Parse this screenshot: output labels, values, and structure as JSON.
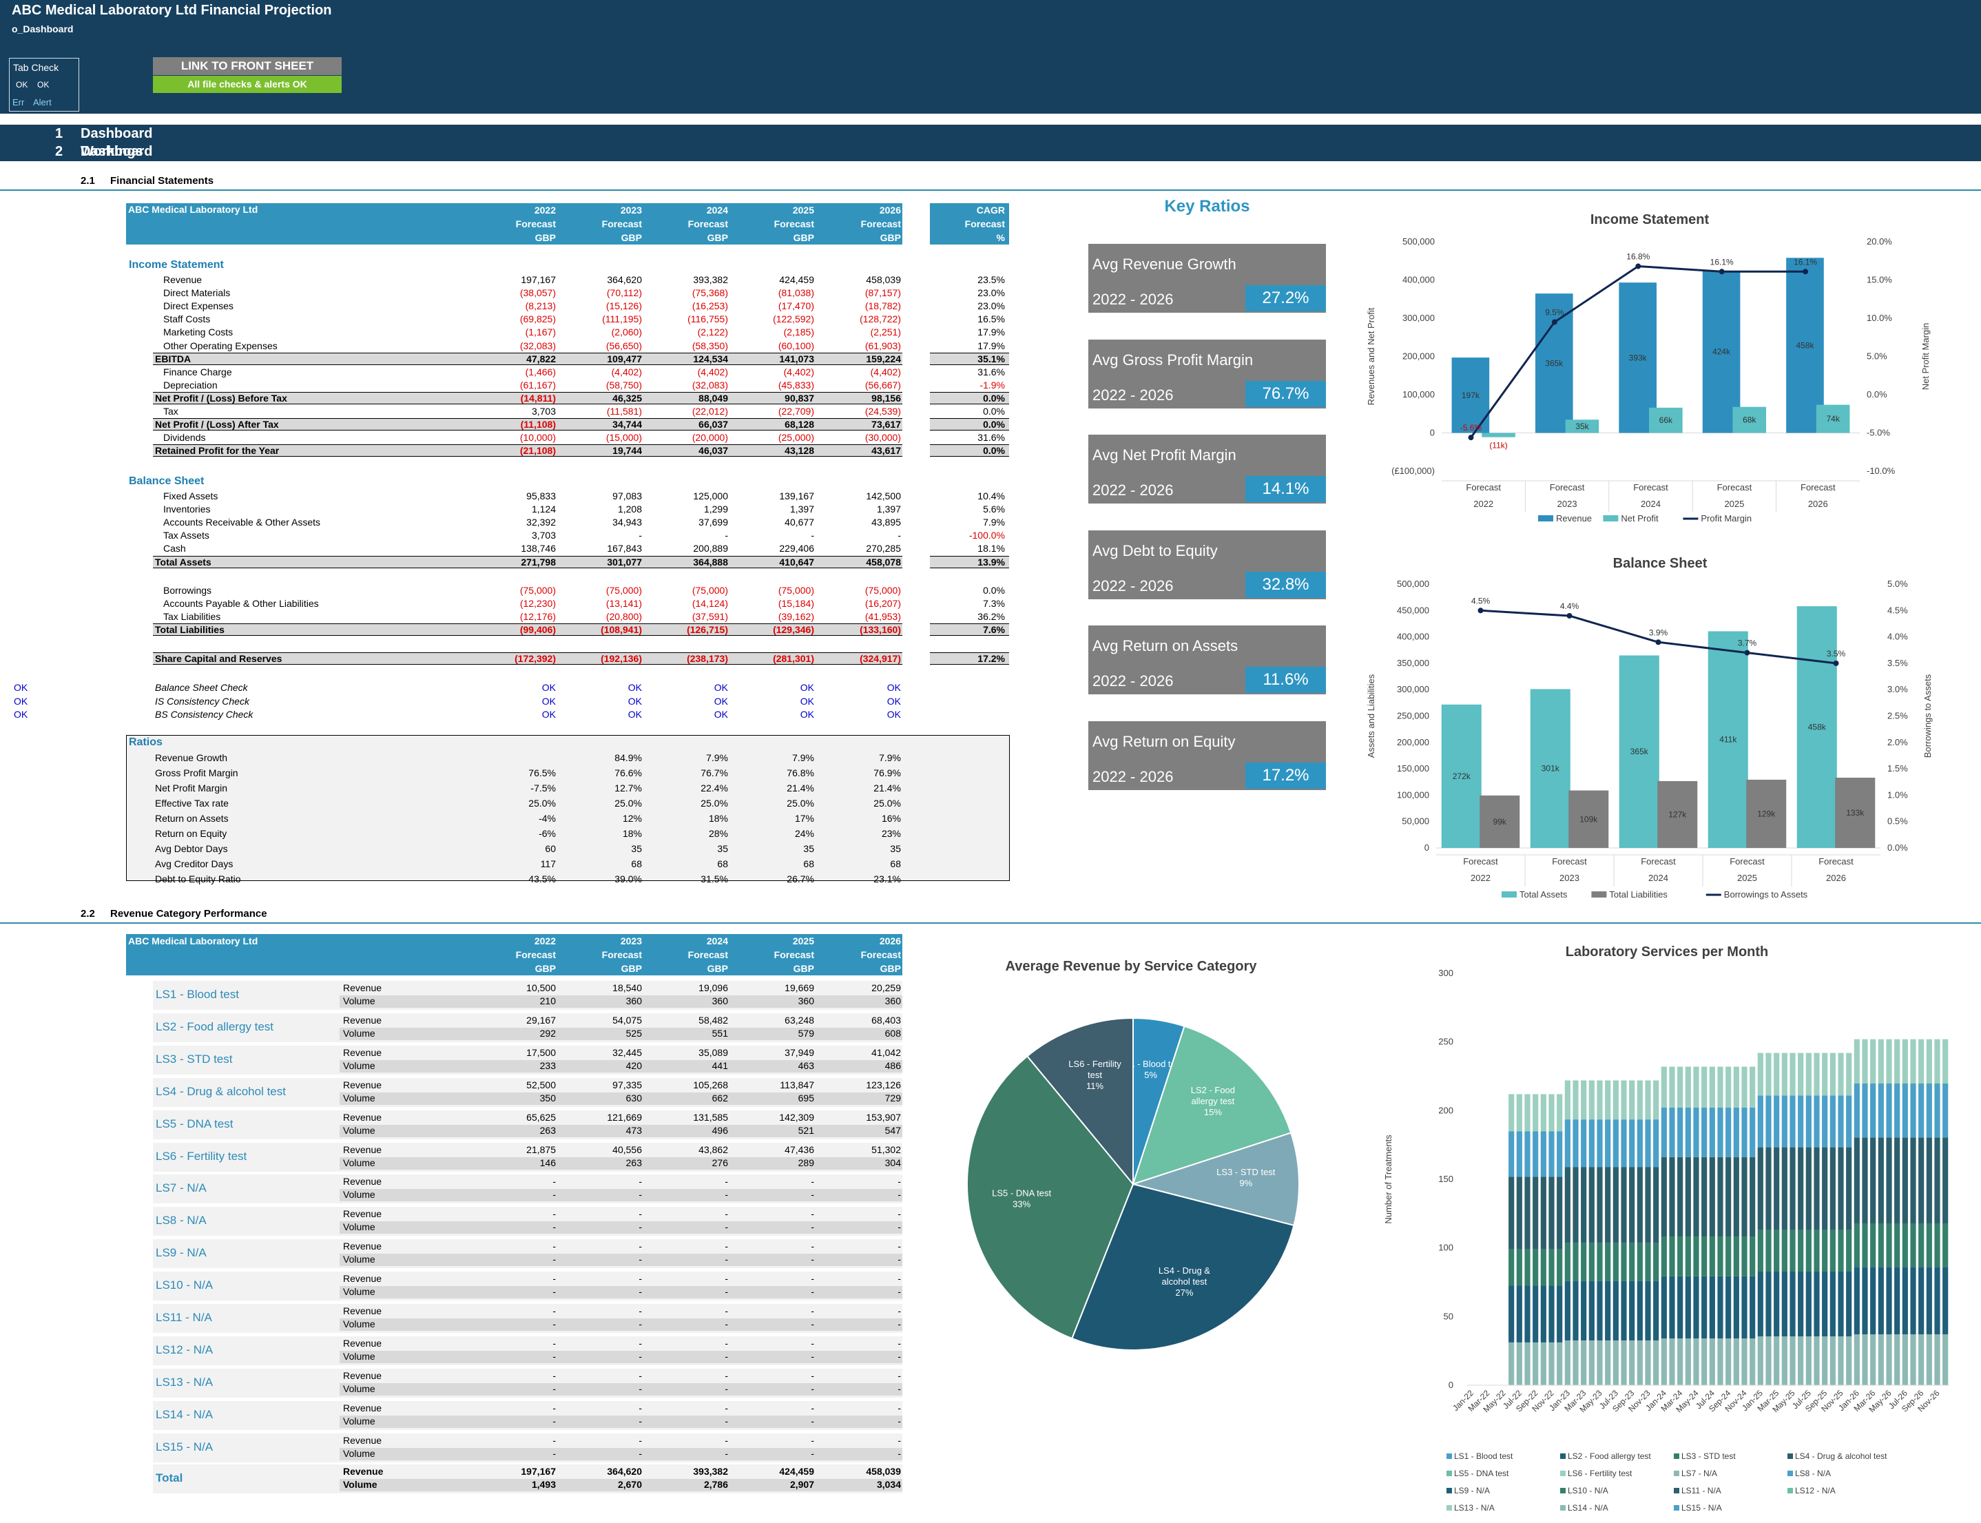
{
  "header": {
    "title": "ABC Medical Laboratory Ltd Financial Projection",
    "sheet": "o_Dashboard",
    "tab_check": "Tab Check",
    "ok1": "OK",
    "ok2": "OK",
    "err": "Err",
    "alert": "Alert",
    "link_button": "LINK TO FRONT SHEET",
    "checks_ok": "All file checks & alerts OK"
  },
  "sections": [
    {
      "num": "1",
      "label": "Dashboard Workings"
    },
    {
      "num": "2",
      "label": "Dashboard"
    }
  ],
  "sub1": {
    "num": "2.1",
    "label": "Financial Statements"
  },
  "sub2": {
    "num": "2.2",
    "label": "Revenue Category Performance"
  },
  "fin": {
    "company": "ABC Medical Laboratory Ltd",
    "years": [
      "2022",
      "2023",
      "2024",
      "2025",
      "2026"
    ],
    "forecast": "Forecast",
    "gbp": "GBP",
    "cagr": "CAGR",
    "pct": "%",
    "is_title": "Income Statement",
    "bs_title": "Balance Sheet",
    "ratios_title": "Ratios",
    "rows": [
      {
        "l": "Revenue",
        "v": [
          "197,167",
          "364,620",
          "393,382",
          "424,459",
          "458,039"
        ],
        "c": "23.5%"
      },
      {
        "l": "Direct Materials",
        "v": [
          "(38,057)",
          "(70,112)",
          "(75,368)",
          "(81,038)",
          "(87,157)"
        ],
        "c": "23.0%",
        "r": 1
      },
      {
        "l": "Direct Expenses",
        "v": [
          "(8,213)",
          "(15,126)",
          "(16,253)",
          "(17,470)",
          "(18,782)"
        ],
        "c": "23.0%",
        "r": 1
      },
      {
        "l": "Staff Costs",
        "v": [
          "(69,825)",
          "(111,195)",
          "(116,755)",
          "(122,592)",
          "(128,722)"
        ],
        "c": "16.5%",
        "r": 1
      },
      {
        "l": "Marketing Costs",
        "v": [
          "(1,167)",
          "(2,060)",
          "(2,122)",
          "(2,185)",
          "(2,251)"
        ],
        "c": "17.9%",
        "r": 1
      },
      {
        "l": "Other Operating Expenses",
        "v": [
          "(32,083)",
          "(56,650)",
          "(58,350)",
          "(60,100)",
          "(61,903)"
        ],
        "c": "17.9%",
        "r": 1
      },
      {
        "l": "EBITDA",
        "v": [
          "47,822",
          "109,477",
          "124,534",
          "141,073",
          "159,224"
        ],
        "c": "35.1%",
        "t": 1
      },
      {
        "l": "Finance Charge",
        "v": [
          "(1,466)",
          "(4,402)",
          "(4,402)",
          "(4,402)",
          "(4,402)"
        ],
        "c": "31.6%",
        "r": 1
      },
      {
        "l": "Depreciation",
        "v": [
          "(61,167)",
          "(58,750)",
          "(32,083)",
          "(45,833)",
          "(56,667)"
        ],
        "c": "-1.9%",
        "r": 1,
        "cr": 1
      },
      {
        "l": "Net Profit / (Loss) Before Tax",
        "v": [
          "(14,811)",
          "46,325",
          "88,049",
          "90,837",
          "98,156"
        ],
        "c": "0.0%",
        "t": 1,
        "r0": 1
      },
      {
        "l": "Tax",
        "v": [
          "3,703",
          "(11,581)",
          "(22,012)",
          "(22,709)",
          "(24,539)"
        ],
        "c": "0.0%",
        "rx": 1
      },
      {
        "l": "Net Profit / (Loss) After Tax",
        "v": [
          "(11,108)",
          "34,744",
          "66,037",
          "68,128",
          "73,617"
        ],
        "c": "0.0%",
        "t": 1,
        "r0": 1
      },
      {
        "l": "Dividends",
        "v": [
          "(10,000)",
          "(15,000)",
          "(20,000)",
          "(25,000)",
          "(30,000)"
        ],
        "c": "31.6%",
        "r": 1
      },
      {
        "l": "Retained Profit for the Year",
        "v": [
          "(21,108)",
          "19,744",
          "46,037",
          "43,128",
          "43,617"
        ],
        "c": "0.0%",
        "t": 1,
        "r0": 1
      }
    ],
    "bs_rows": [
      {
        "l": "Fixed Assets",
        "v": [
          "95,833",
          "97,083",
          "125,000",
          "139,167",
          "142,500"
        ],
        "c": "10.4%"
      },
      {
        "l": "Inventories",
        "v": [
          "1,124",
          "1,208",
          "1,299",
          "1,397",
          "1,397"
        ],
        "c": "5.6%"
      },
      {
        "l": "Accounts Receivable & Other Assets",
        "v": [
          "32,392",
          "34,943",
          "37,699",
          "40,677",
          "43,895"
        ],
        "c": "7.9%"
      },
      {
        "l": "Tax Assets",
        "v": [
          "3,703",
          "-",
          "-",
          "-",
          "-"
        ],
        "c": "-100.0%",
        "cr": 1
      },
      {
        "l": "Cash",
        "v": [
          "138,746",
          "167,843",
          "200,889",
          "229,406",
          "270,285"
        ],
        "c": "18.1%"
      },
      {
        "l": "Total Assets",
        "v": [
          "271,798",
          "301,077",
          "364,888",
          "410,647",
          "458,078"
        ],
        "c": "13.9%",
        "t": 1
      }
    ],
    "liab_rows": [
      {
        "l": "Borrowings",
        "v": [
          "(75,000)",
          "(75,000)",
          "(75,000)",
          "(75,000)",
          "(75,000)"
        ],
        "c": "0.0%",
        "r": 1
      },
      {
        "l": "Accounts Payable & Other Liabilities",
        "v": [
          "(12,230)",
          "(13,141)",
          "(14,124)",
          "(15,184)",
          "(16,207)"
        ],
        "c": "7.3%",
        "r": 1
      },
      {
        "l": "Tax Liabilities",
        "v": [
          "(12,176)",
          "(20,800)",
          "(37,591)",
          "(39,162)",
          "(41,953)"
        ],
        "c": "36.2%",
        "r": 1
      },
      {
        "l": "Total Liabilities",
        "v": [
          "(99,406)",
          "(108,941)",
          "(126,715)",
          "(129,346)",
          "(133,160)"
        ],
        "c": "7.6%",
        "t": 1,
        "r": 1
      }
    ],
    "equity": {
      "l": "Share Capital and Reserves",
      "v": [
        "(172,392)",
        "(192,136)",
        "(238,173)",
        "(281,301)",
        "(324,917)"
      ],
      "c": "17.2%"
    },
    "checks": [
      {
        "l": "Balance Sheet Check",
        "s": "OK",
        "v": [
          "OK",
          "OK",
          "OK",
          "OK",
          "OK"
        ]
      },
      {
        "l": "IS Consistency Check",
        "s": "OK",
        "v": [
          "OK",
          "OK",
          "OK",
          "OK",
          "OK"
        ]
      },
      {
        "l": "BS Consistency Check",
        "s": "OK",
        "v": [
          "OK",
          "OK",
          "OK",
          "OK",
          "OK"
        ]
      }
    ],
    "ratios": [
      {
        "l": "Revenue Growth",
        "v": [
          "",
          "84.9%",
          "7.9%",
          "7.9%",
          "7.9%"
        ]
      },
      {
        "l": "Gross Profit Margin",
        "v": [
          "76.5%",
          "76.6%",
          "76.7%",
          "76.8%",
          "76.9%"
        ]
      },
      {
        "l": "Net Profit Margin",
        "v": [
          "-7.5%",
          "12.7%",
          "22.4%",
          "21.4%",
          "21.4%"
        ]
      },
      {
        "l": "Effective Tax rate",
        "v": [
          "25.0%",
          "25.0%",
          "25.0%",
          "25.0%",
          "25.0%"
        ]
      },
      {
        "l": "Return on Assets",
        "v": [
          "-4%",
          "12%",
          "18%",
          "17%",
          "16%"
        ]
      },
      {
        "l": "Return on Equity",
        "v": [
          "-6%",
          "18%",
          "28%",
          "24%",
          "23%"
        ]
      },
      {
        "l": "Avg Debtor Days",
        "v": [
          "60",
          "35",
          "35",
          "35",
          "35"
        ]
      },
      {
        "l": "Avg Creditor Days",
        "v": [
          "117",
          "68",
          "68",
          "68",
          "68"
        ]
      },
      {
        "l": "Debt to Equity Ratio",
        "v": [
          "43.5%",
          "39.0%",
          "31.5%",
          "26.7%",
          "23.1%"
        ]
      }
    ]
  },
  "key_ratios": {
    "title": "Key Ratios",
    "items": [
      {
        "label": "Avg Revenue Growth",
        "period": "2022 - 2026",
        "value": "27.2%"
      },
      {
        "label": "Avg Gross Profit Margin",
        "period": "2022 - 2026",
        "value": "76.7%"
      },
      {
        "label": "Avg Net Profit Margin",
        "period": "2022 - 2026",
        "value": "14.1%"
      },
      {
        "label": "Avg Debt to Equity",
        "period": "2022 - 2026",
        "value": "32.8%"
      },
      {
        "label": "Avg Return on Assets",
        "period": "2022 - 2026",
        "value": "11.6%"
      },
      {
        "label": "Avg Return on Equity",
        "period": "2022 - 2026",
        "value": "17.2%"
      }
    ]
  },
  "revenue_table": {
    "company": "ABC Medical Laboratory Ltd",
    "years": [
      "2022",
      "2023",
      "2024",
      "2025",
      "2026"
    ],
    "forecast": "Forecast",
    "gbp": "GBP",
    "rev": "Revenue",
    "vol": "Volume",
    "cats": [
      {
        "n": "LS1 - Blood test",
        "r": [
          "10,500",
          "18,540",
          "19,096",
          "19,669",
          "20,259"
        ],
        "v": [
          "210",
          "360",
          "360",
          "360",
          "360"
        ]
      },
      {
        "n": "LS2 - Food allergy test",
        "r": [
          "29,167",
          "54,075",
          "58,482",
          "63,248",
          "68,403"
        ],
        "v": [
          "292",
          "525",
          "551",
          "579",
          "608"
        ]
      },
      {
        "n": "LS3 - STD test",
        "r": [
          "17,500",
          "32,445",
          "35,089",
          "37,949",
          "41,042"
        ],
        "v": [
          "233",
          "420",
          "441",
          "463",
          "486"
        ]
      },
      {
        "n": "LS4 - Drug & alcohol test",
        "r": [
          "52,500",
          "97,335",
          "105,268",
          "113,847",
          "123,126"
        ],
        "v": [
          "350",
          "630",
          "662",
          "695",
          "729"
        ]
      },
      {
        "n": "LS5 - DNA test",
        "r": [
          "65,625",
          "121,669",
          "131,585",
          "142,309",
          "153,907"
        ],
        "v": [
          "263",
          "473",
          "496",
          "521",
          "547"
        ]
      },
      {
        "n": "LS6 - Fertility test",
        "r": [
          "21,875",
          "40,556",
          "43,862",
          "47,436",
          "51,302"
        ],
        "v": [
          "146",
          "263",
          "276",
          "289",
          "304"
        ]
      },
      {
        "n": "LS7 - N/A",
        "r": [
          "-",
          "-",
          "-",
          "-",
          "-"
        ],
        "v": [
          "-",
          "-",
          "-",
          "-",
          "-"
        ]
      },
      {
        "n": "LS8 - N/A",
        "r": [
          "-",
          "-",
          "-",
          "-",
          "-"
        ],
        "v": [
          "-",
          "-",
          "-",
          "-",
          "-"
        ]
      },
      {
        "n": "LS9 - N/A",
        "r": [
          "-",
          "-",
          "-",
          "-",
          "-"
        ],
        "v": [
          "-",
          "-",
          "-",
          "-",
          "-"
        ]
      },
      {
        "n": "LS10 - N/A",
        "r": [
          "-",
          "-",
          "-",
          "-",
          "-"
        ],
        "v": [
          "-",
          "-",
          "-",
          "-",
          "-"
        ]
      },
      {
        "n": "LS11 - N/A",
        "r": [
          "-",
          "-",
          "-",
          "-",
          "-"
        ],
        "v": [
          "-",
          "-",
          "-",
          "-",
          "-"
        ]
      },
      {
        "n": "LS12 - N/A",
        "r": [
          "-",
          "-",
          "-",
          "-",
          "-"
        ],
        "v": [
          "-",
          "-",
          "-",
          "-",
          "-"
        ]
      },
      {
        "n": "LS13 - N/A",
        "r": [
          "-",
          "-",
          "-",
          "-",
          "-"
        ],
        "v": [
          "-",
          "-",
          "-",
          "-",
          "-"
        ]
      },
      {
        "n": "LS14 - N/A",
        "r": [
          "-",
          "-",
          "-",
          "-",
          "-"
        ],
        "v": [
          "-",
          "-",
          "-",
          "-",
          "-"
        ]
      },
      {
        "n": "LS15 - N/A",
        "r": [
          "-",
          "-",
          "-",
          "-",
          "-"
        ],
        "v": [
          "-",
          "-",
          "-",
          "-",
          "-"
        ]
      }
    ],
    "total": {
      "n": "Total",
      "r": [
        "197,167",
        "364,620",
        "393,382",
        "424,459",
        "458,039"
      ],
      "v": [
        "1,493",
        "2,670",
        "2,786",
        "2,907",
        "3,034"
      ]
    }
  },
  "chart_data": [
    {
      "type": "bar",
      "title": "Income Statement",
      "categories": [
        "Forecast 2022",
        "Forecast 2023",
        "Forecast 2024",
        "Forecast 2025",
        "Forecast 2026"
      ],
      "series": [
        {
          "name": "Revenue",
          "values": [
            197167,
            364620,
            393382,
            424459,
            458039
          ],
          "labels": [
            "197k",
            "365k",
            "393k",
            "424k",
            "458k"
          ],
          "color": "#2e8fbf"
        },
        {
          "name": "Net Profit",
          "values": [
            -11108,
            34744,
            66037,
            68128,
            73617
          ],
          "labels": [
            "(11k)",
            "35k",
            "66k",
            "68k",
            "74k"
          ],
          "color": "#5bbfc4"
        },
        {
          "name": "Profit Margin",
          "values": [
            -5.6,
            9.5,
            16.8,
            16.1,
            16.1
          ],
          "labels": [
            "-5.6%",
            "9.5%",
            "16.8%",
            "16.1%",
            "16.1%"
          ],
          "axis": "right",
          "color": "#0f2550"
        }
      ],
      "ylabel": "Revenues and Net Profit",
      "y2label": "Net Profit Margin",
      "ylim": [
        -100000,
        500000
      ],
      "y2lim": [
        -10,
        20
      ],
      "yticks": [
        "500,000",
        "400,000",
        "300,000",
        "200,000",
        "100,000",
        "0",
        "(£100,000)"
      ],
      "y2ticks": [
        "20.0%",
        "15.0%",
        "10.0%",
        "5.0%",
        "0.0%",
        "-5.0%",
        "-10.0%"
      ]
    },
    {
      "type": "bar",
      "title": "Balance Sheet",
      "categories": [
        "Forecast 2022",
        "Forecast 2023",
        "Forecast 2024",
        "Forecast 2025",
        "Forecast 2026"
      ],
      "series": [
        {
          "name": "Total Assets",
          "values": [
            271798,
            301077,
            364888,
            410647,
            458078
          ],
          "labels": [
            "272k",
            "301k",
            "365k",
            "411k",
            "458k"
          ],
          "color": "#5bbfc4"
        },
        {
          "name": "Total Liabilities",
          "values": [
            99406,
            108941,
            126715,
            129346,
            133160
          ],
          "labels": [
            "99k",
            "109k",
            "127k",
            "129k",
            "133k"
          ],
          "color": "#7f7f7f"
        },
        {
          "name": "Borrowings to Assets",
          "values": [
            4.5,
            4.4,
            3.9,
            3.7,
            3.5
          ],
          "labels": [
            "4.5%",
            "4.4%",
            "3.9%",
            "3.7%",
            "3.5%"
          ],
          "axis": "right",
          "color": "#0f2550"
        }
      ],
      "ylabel": "Assets and Liabilities",
      "y2label": "Borrowings to Assets",
      "ylim": [
        0,
        500000
      ],
      "y2lim": [
        0,
        5
      ],
      "yticks": [
        "500,000",
        "450,000",
        "400,000",
        "350,000",
        "300,000",
        "250,000",
        "200,000",
        "150,000",
        "100,000",
        "50,000",
        "0"
      ],
      "y2ticks": [
        "5.0%",
        "4.5%",
        "4.0%",
        "3.5%",
        "3.0%",
        "2.5%",
        "2.0%",
        "1.5%",
        "1.0%",
        "0.5%",
        "0.0%"
      ]
    },
    {
      "type": "pie",
      "title": "Average Revenue by Service Category",
      "slices": [
        {
          "name": "LS1 - Blood test",
          "value": 5,
          "label": "5%",
          "color": "#2e8fbf"
        },
        {
          "name": "LS2 - Food allergy test",
          "value": 15,
          "label": "15%",
          "color": "#6cc0a3"
        },
        {
          "name": "LS3 - STD test",
          "value": 9,
          "label": "9%",
          "color": "#7fa9b6"
        },
        {
          "name": "LS4 - Drug & alcohol test",
          "value": 27,
          "label": "27%",
          "color": "#1e5772"
        },
        {
          "name": "LS5 - DNA test",
          "value": 33,
          "label": "33%",
          "color": "#3e7d68"
        },
        {
          "name": "LS6 - Fertility test",
          "value": 11,
          "label": "11%",
          "color": "#3f5e6e"
        }
      ]
    },
    {
      "type": "bar",
      "stacked": true,
      "title": "Laboratory Services per Month",
      "ylabel": "Number of Treatments",
      "ylim": [
        0,
        300
      ],
      "yticks": [
        "300",
        "250",
        "200",
        "150",
        "100",
        "50",
        "0"
      ],
      "xticks": [
        "Jan-22",
        "Mar-22",
        "May-22",
        "Jul-22",
        "Sep-22",
        "Nov-22",
        "Jan-23",
        "Mar-23",
        "May-23",
        "Jul-23",
        "Sep-23",
        "Nov-23",
        "Jan-24",
        "Mar-24",
        "May-24",
        "Jul-24",
        "Sep-24",
        "Nov-24",
        "Jan-25",
        "Mar-25",
        "May-25",
        "Jul-25",
        "Sep-25",
        "Nov-25",
        "Jan-26",
        "Mar-26",
        "May-26",
        "Jul-26",
        "Sep-26",
        "Nov-26"
      ],
      "monthly_total_by_year": {
        "2022": 212,
        "2023": 222,
        "2024": 232,
        "2025": 242,
        "2026": 252
      },
      "first_active_month": "Jun-22",
      "legend": [
        "LS1 - Blood test",
        "LS2 - Food allergy test",
        "LS3 - STD test",
        "LS4 - Drug & alcohol test",
        "LS5 - DNA test",
        "LS6 - Fertility test",
        "LS7 - N/A",
        "LS8 - N/A",
        "LS9 - N/A",
        "LS10 - N/A",
        "LS11 - N/A",
        "LS12 - N/A",
        "LS13 - N/A",
        "LS14 - N/A",
        "LS15 - N/A"
      ]
    }
  ]
}
